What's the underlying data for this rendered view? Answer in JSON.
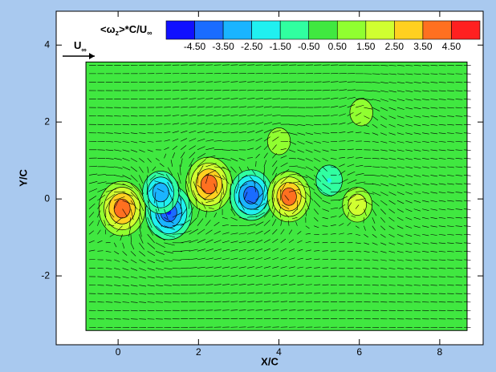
{
  "chart_data": {
    "type": "contour",
    "colorbar_title": [
      "<ω",
      "z",
      ">*C/U",
      "∞"
    ],
    "freestream_label": [
      "U",
      "∞"
    ],
    "xlabel": "X/C",
    "ylabel": "Y/C",
    "xlim": [
      -1.54,
      9.08
    ],
    "ylim": [
      -3.79,
      4.88
    ],
    "xticks": [
      0,
      2,
      4,
      6,
      8
    ],
    "yticks": [
      -2,
      0,
      2,
      4
    ],
    "levels": [
      {
        "value": -4.5,
        "label": "-4.50"
      },
      {
        "value": -3.5,
        "label": "-3.50"
      },
      {
        "value": -2.5,
        "label": "-2.50"
      },
      {
        "value": -1.5,
        "label": "-1.50"
      },
      {
        "value": -0.5,
        "label": "-0.50"
      },
      {
        "value": 0.5,
        "label": "0.50"
      },
      {
        "value": 1.5,
        "label": "1.50"
      },
      {
        "value": 2.5,
        "label": "2.50"
      },
      {
        "value": 3.5,
        "label": "3.50"
      },
      {
        "value": 4.5,
        "label": "4.50"
      }
    ],
    "colors": [
      "#1010ff",
      "#1a6cff",
      "#1ab4ff",
      "#20f0f0",
      "#30ffa0",
      "#40e840",
      "#90ff30",
      "#d0ff30",
      "#ffd020",
      "#ff7020",
      "#ff2020"
    ],
    "domain_x": [
      -0.8,
      8.68
    ],
    "domain_y": [
      -3.42,
      3.56
    ],
    "x": [
      0.1,
      1.26,
      1.06,
      2.26,
      3.31,
      4.25,
      5.95,
      5.25,
      4.0,
      6.05
    ],
    "y": [
      -0.25,
      -0.35,
      0.17,
      0.38,
      0.1,
      0.06,
      -0.15,
      0.48,
      1.5,
      2.25
    ],
    "values": [
      4.5,
      -4.5,
      -3.0,
      4.5,
      -4.0,
      4.0,
      2.0,
      -1.5,
      1.0,
      1.0
    ]
  }
}
